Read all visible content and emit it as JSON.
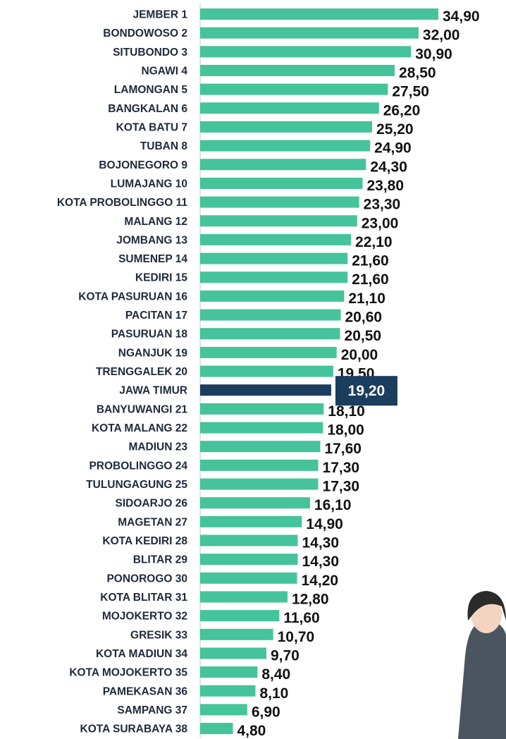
{
  "chart_data": {
    "type": "bar",
    "orientation": "horizontal",
    "categories": [
      "JEMBER 1",
      "BONDOWOSO 2",
      "SITUBONDO 3",
      "NGAWI 4",
      "LAMONGAN 5",
      "BANGKALAN 6",
      "KOTA BATU 7",
      "TUBAN 8",
      "BOJONEGORO 9",
      "LUMAJANG 10",
      "KOTA PROBOLINGGO 11",
      "MALANG 12",
      "JOMBANG 13",
      "SUMENEP 14",
      "KEDIRI 15",
      "KOTA PASURUAN 16",
      "PACITAN 17",
      "PASURUAN 18",
      "NGANJUK 19",
      "TRENGGALEK 20",
      "JAWA TIMUR",
      "BANYUWANGI 21",
      "KOTA MALANG 22",
      "MADIUN 23",
      "PROBOLINGGO 24",
      "TULUNGAGUNG 25",
      "SIDOARJO 26",
      "MAGETAN 27",
      "KOTA KEDIRI 28",
      "BLITAR 29",
      "PONOROGO 30",
      "KOTA BLITAR 31",
      "MOJOKERTO 32",
      "GRESIK 33",
      "KOTA MADIUN 34",
      "KOTA MOJOKERTO 35",
      "PAMEKASAN 36",
      "SAMPANG 37",
      "KOTA SURABAYA 38"
    ],
    "values": [
      34.9,
      32,
      30.9,
      28.5,
      27.5,
      26.2,
      25.2,
      24.9,
      24.3,
      23.8,
      23.3,
      23,
      22.1,
      21.6,
      21.6,
      21.1,
      20.6,
      20.5,
      20,
      19.5,
      19.2,
      18.1,
      18,
      17.6,
      17.3,
      17.3,
      16.1,
      14.9,
      14.3,
      14.3,
      14.2,
      12.8,
      11.6,
      10.7,
      9.7,
      8.4,
      8.1,
      6.9,
      4.8
    ],
    "value_labels": [
      "34,90",
      "32,00",
      "30,90",
      "28,50",
      "27,50",
      "26,20",
      "25,20",
      "24,90",
      "24,30",
      "23,80",
      "23,30",
      "23,00",
      "22,10",
      "21,60",
      "21,60",
      "21,10",
      "20,60",
      "20,50",
      "20,00",
      "19,50",
      "19,20",
      "18,10",
      "18,00",
      "17,60",
      "17,30",
      "17,30",
      "16,10",
      "14,90",
      "14,30",
      "14,30",
      "14,20",
      "12,80",
      "11,60",
      "10,70",
      "9,70",
      "8,40",
      "8,10",
      "6,90",
      "4,80"
    ],
    "color": "#45c39a",
    "colors": [
      "#45c39a",
      "#45c39a",
      "#45c39a",
      "#45c39a",
      "#45c39a",
      "#45c39a",
      "#45c39a",
      "#45c39a",
      "#45c39a",
      "#45c39a",
      "#45c39a",
      "#45c39a",
      "#45c39a",
      "#45c39a",
      "#45c39a",
      "#45c39a",
      "#45c39a",
      "#45c39a",
      "#45c39a",
      "#45c39a",
      "#1b3d5e",
      "#45c39a",
      "#45c39a",
      "#45c39a",
      "#45c39a",
      "#45c39a",
      "#45c39a",
      "#45c39a",
      "#45c39a",
      "#45c39a",
      "#45c39a",
      "#45c39a",
      "#45c39a",
      "#45c39a",
      "#45c39a",
      "#45c39a",
      "#45c39a",
      "#45c39a",
      "#45c39a"
    ]
  }
}
